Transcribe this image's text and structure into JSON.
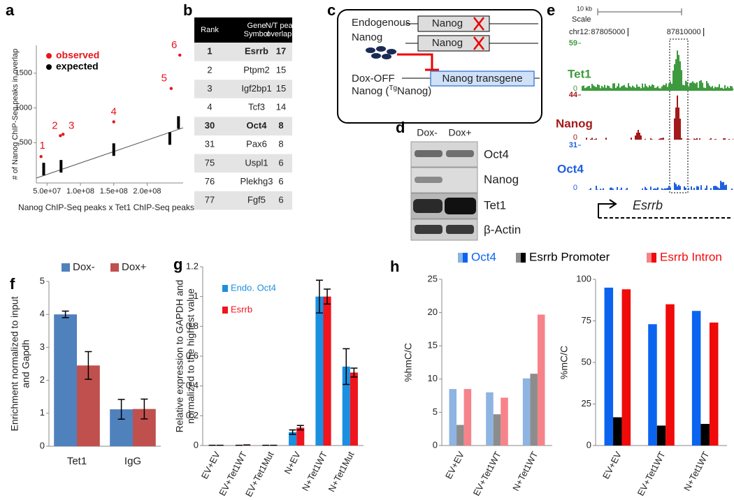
{
  "chart_data": [
    {
      "type": "scatter",
      "panel": "a",
      "ylabel": "# of Nanog ChIP-Seq peaks in overlap",
      "xlabel": "Nanog ChIP-Seq peaks x Tet1 ChIP-Seq peaks",
      "xlim": [
        34000000,
        254000000
      ],
      "ylim": [
        -80,
        1900
      ],
      "xticks": [
        {
          "value": 50000000,
          "label": "5.0e+07"
        },
        {
          "value": 100000000,
          "label": "1.0e+08"
        },
        {
          "value": 150000000,
          "label": "1.5e+08"
        },
        {
          "value": 200000000,
          "label": "2.0e+08"
        }
      ],
      "yticks": [
        500,
        1000,
        1500
      ],
      "legend": "upper left",
      "series": [
        {
          "name": "observed",
          "color": "#e8141c",
          "x": [
            41000000,
            70000000,
            74000000,
            150000000,
            236000000,
            249000000
          ],
          "values": [
            300,
            600,
            620,
            800,
            1280,
            1760
          ],
          "point_labels": [
            "1",
            "2",
            "3",
            "4",
            "5",
            "6"
          ]
        },
        {
          "name": "expected",
          "color": "#000000",
          "x": [
            45000000,
            71000000,
            150000000,
            234000000,
            247000000
          ],
          "values": [
            120,
            160,
            400,
            560,
            790
          ]
        }
      ],
      "trendline": {
        "x": [
          34000000,
          254000000
        ],
        "values": [
          -10,
          714
        ],
        "color": "#555555"
      }
    },
    {
      "type": "bar",
      "panel": "f",
      "ylabel": [
        "Enrichment normalized to input",
        "and Gapdh"
      ],
      "categories": [
        "Tet1",
        "IgG"
      ],
      "ylim": [
        0,
        5
      ],
      "yticks": [
        0,
        1,
        2,
        3,
        4,
        5
      ],
      "legend": "top",
      "series": [
        {
          "name": "Dox-",
          "color": "#4f81bd",
          "values": [
            4.0,
            1.12
          ],
          "errors": [
            0.1,
            0.3
          ]
        },
        {
          "name": "Dox+",
          "color": "#c0504d",
          "values": [
            2.45,
            1.13
          ],
          "errors": [
            0.42,
            0.3
          ]
        }
      ]
    },
    {
      "type": "bar",
      "panel": "g",
      "ylabel": [
        "Relative expression to GAPDH and",
        "normalized to the highest value"
      ],
      "categories": [
        "EV+EV",
        "EV+Tet1WT",
        "EV+Tet1Mut",
        "N+EV",
        "N+Tet1WT",
        "N+Tet1Mut"
      ],
      "ylim": [
        0,
        1.2
      ],
      "yticks": [
        0,
        0.2,
        0.4,
        0.6,
        0.8,
        1,
        1.2
      ],
      "legend": "upper left",
      "series": [
        {
          "name": "Endo. Oct4",
          "color": "#1b8fe0",
          "values": [
            0.002,
            0.002,
            0.002,
            0.09,
            1.0,
            0.53
          ],
          "errors": [
            0,
            0,
            0,
            0.015,
            0.11,
            0.12
          ]
        },
        {
          "name": "Esrrb",
          "color": "#f0141c",
          "values": [
            0.002,
            0.004,
            0.002,
            0.12,
            1.0,
            0.49
          ],
          "errors": [
            0,
            0,
            0,
            0.015,
            0.05,
            0.03
          ]
        }
      ]
    },
    {
      "type": "bar",
      "panel": "h",
      "ylabel": "%hmC/C",
      "categories": [
        "EV+EV",
        "EV+Tet1WT",
        "N+Tet1WT"
      ],
      "ylim": [
        0,
        25
      ],
      "yticks": [
        0,
        5,
        10,
        15,
        20,
        25
      ],
      "legend": "top",
      "series": [
        {
          "name": "Oct4",
          "color": "#8db4e2",
          "values": [
            8.5,
            8.0,
            10.1
          ]
        },
        {
          "name": "Esrrb Promoter",
          "color": "#8c8c8c",
          "values": [
            3.1,
            4.7,
            10.8
          ]
        },
        {
          "name": "Esrrb Intron",
          "color": "#f7838a",
          "values": [
            8.5,
            7.2,
            19.7
          ]
        }
      ]
    },
    {
      "type": "bar",
      "ylabel": "%mC/C",
      "categories": [
        "EV+EV",
        "EV+Tet1WT",
        "N+Tet1WT"
      ],
      "ylim": [
        0,
        100
      ],
      "yticks": [
        0,
        25,
        50,
        75,
        100
      ],
      "series": [
        {
          "color": "#0a64f0",
          "values": [
            95,
            73,
            81
          ]
        },
        {
          "color": "#000000",
          "values": [
            17,
            12,
            13
          ]
        },
        {
          "color": "#f00a0a",
          "values": [
            94,
            85,
            74
          ]
        }
      ]
    }
  ],
  "table": {
    "panel": "b",
    "columns": [
      [
        "Rank"
      ],
      [
        "Gene",
        "Symbol"
      ],
      [
        "N/T peak",
        "overlaps"
      ]
    ],
    "rows": [
      [
        1,
        "Esrrb",
        17
      ],
      [
        2,
        "Ptpm2",
        15
      ],
      [
        3,
        "Igf2bp1",
        15
      ],
      [
        4,
        "Tcf3",
        14
      ],
      [
        30,
        "Oct4",
        8
      ],
      [
        31,
        "Pax6",
        8
      ],
      [
        75,
        "Uspl1",
        6
      ],
      [
        76,
        "Plekhg3",
        6
      ],
      [
        77,
        "Fgf5",
        6
      ]
    ]
  },
  "diagram": {
    "panel": "c",
    "endogenous": [
      "Endogenous",
      "Nanog"
    ],
    "gene": "Nanog",
    "gene_copy": "Nanog",
    "dox_off": "Dox-OFF",
    "tg_label": [
      "Nanog (",
      "Tg",
      "Nanog)"
    ],
    "transgene": "Nanog transgene"
  },
  "blot": {
    "panel": "d",
    "conditions": [
      "Dox-",
      "Dox+"
    ],
    "proteins": [
      "Oct4",
      "Nanog",
      "Tet1",
      "β-Actin"
    ]
  },
  "genome_track": {
    "panel": "e",
    "scale_bar": "10 kb",
    "scale_label": "Scale",
    "chrom": "chr12:",
    "xlim": [
      87800000,
      87812000
    ],
    "xticks": [
      87805000,
      87810000
    ],
    "tracks": [
      {
        "name": "Tet1",
        "color": "#3e9a3e",
        "max": 59,
        "min": 0
      },
      {
        "name": "Nanog",
        "color": "#a31a1a",
        "max": 44,
        "min": 0
      },
      {
        "name": "Oct4",
        "color": "#1f5fe0",
        "max": 31,
        "min": 0
      }
    ],
    "gene": "Esrrb"
  }
}
